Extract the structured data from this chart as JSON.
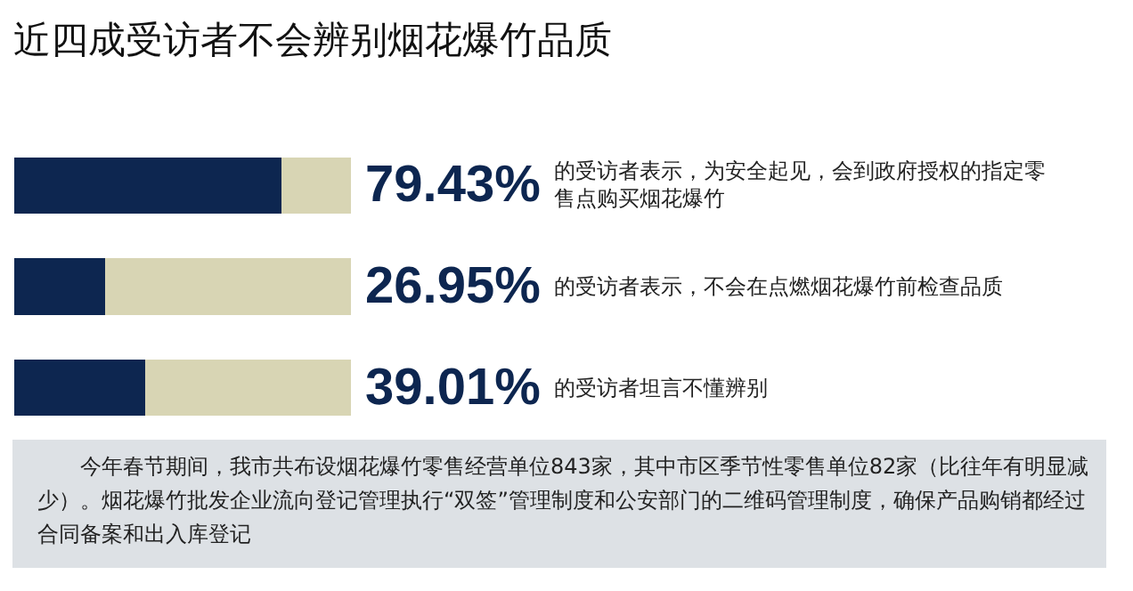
{
  "chart_data": {
    "type": "bar",
    "title": "近四成受访者不会辨别烟花爆竹品质",
    "orientation": "horizontal",
    "stacked": true,
    "categories": [
      "的受访者表示，为安全起见，会到政府授权的指定零售点购买烟花爆竹",
      "的受访者表示，不会在点燃烟花爆竹前检查品质",
      "的受访者坦言不懂辨别"
    ],
    "series": [
      {
        "color": "#0d2650",
        "values": [
          79.43,
          26.95,
          39.01
        ],
        "value_labels": [
          "79.43%",
          "26.95%",
          "39.01%"
        ]
      },
      {
        "color": "#d8d5b4",
        "values": [
          20.57,
          73.05,
          60.99
        ]
      }
    ],
    "xlim": [
      0,
      100
    ],
    "tick_labels": false,
    "grid": false,
    "annotations": [
      "今年春节期间，我市共布设烟花爆竹零售经营单位843家，其中市区季节性零售单位82家（比往年有明显减少）。烟花爆竹批发企业流向登记管理执行“双签”管理制度和公安部门的二维码管理制度，确保产品购销都经过合同备案和出入库登记"
    ]
  }
}
